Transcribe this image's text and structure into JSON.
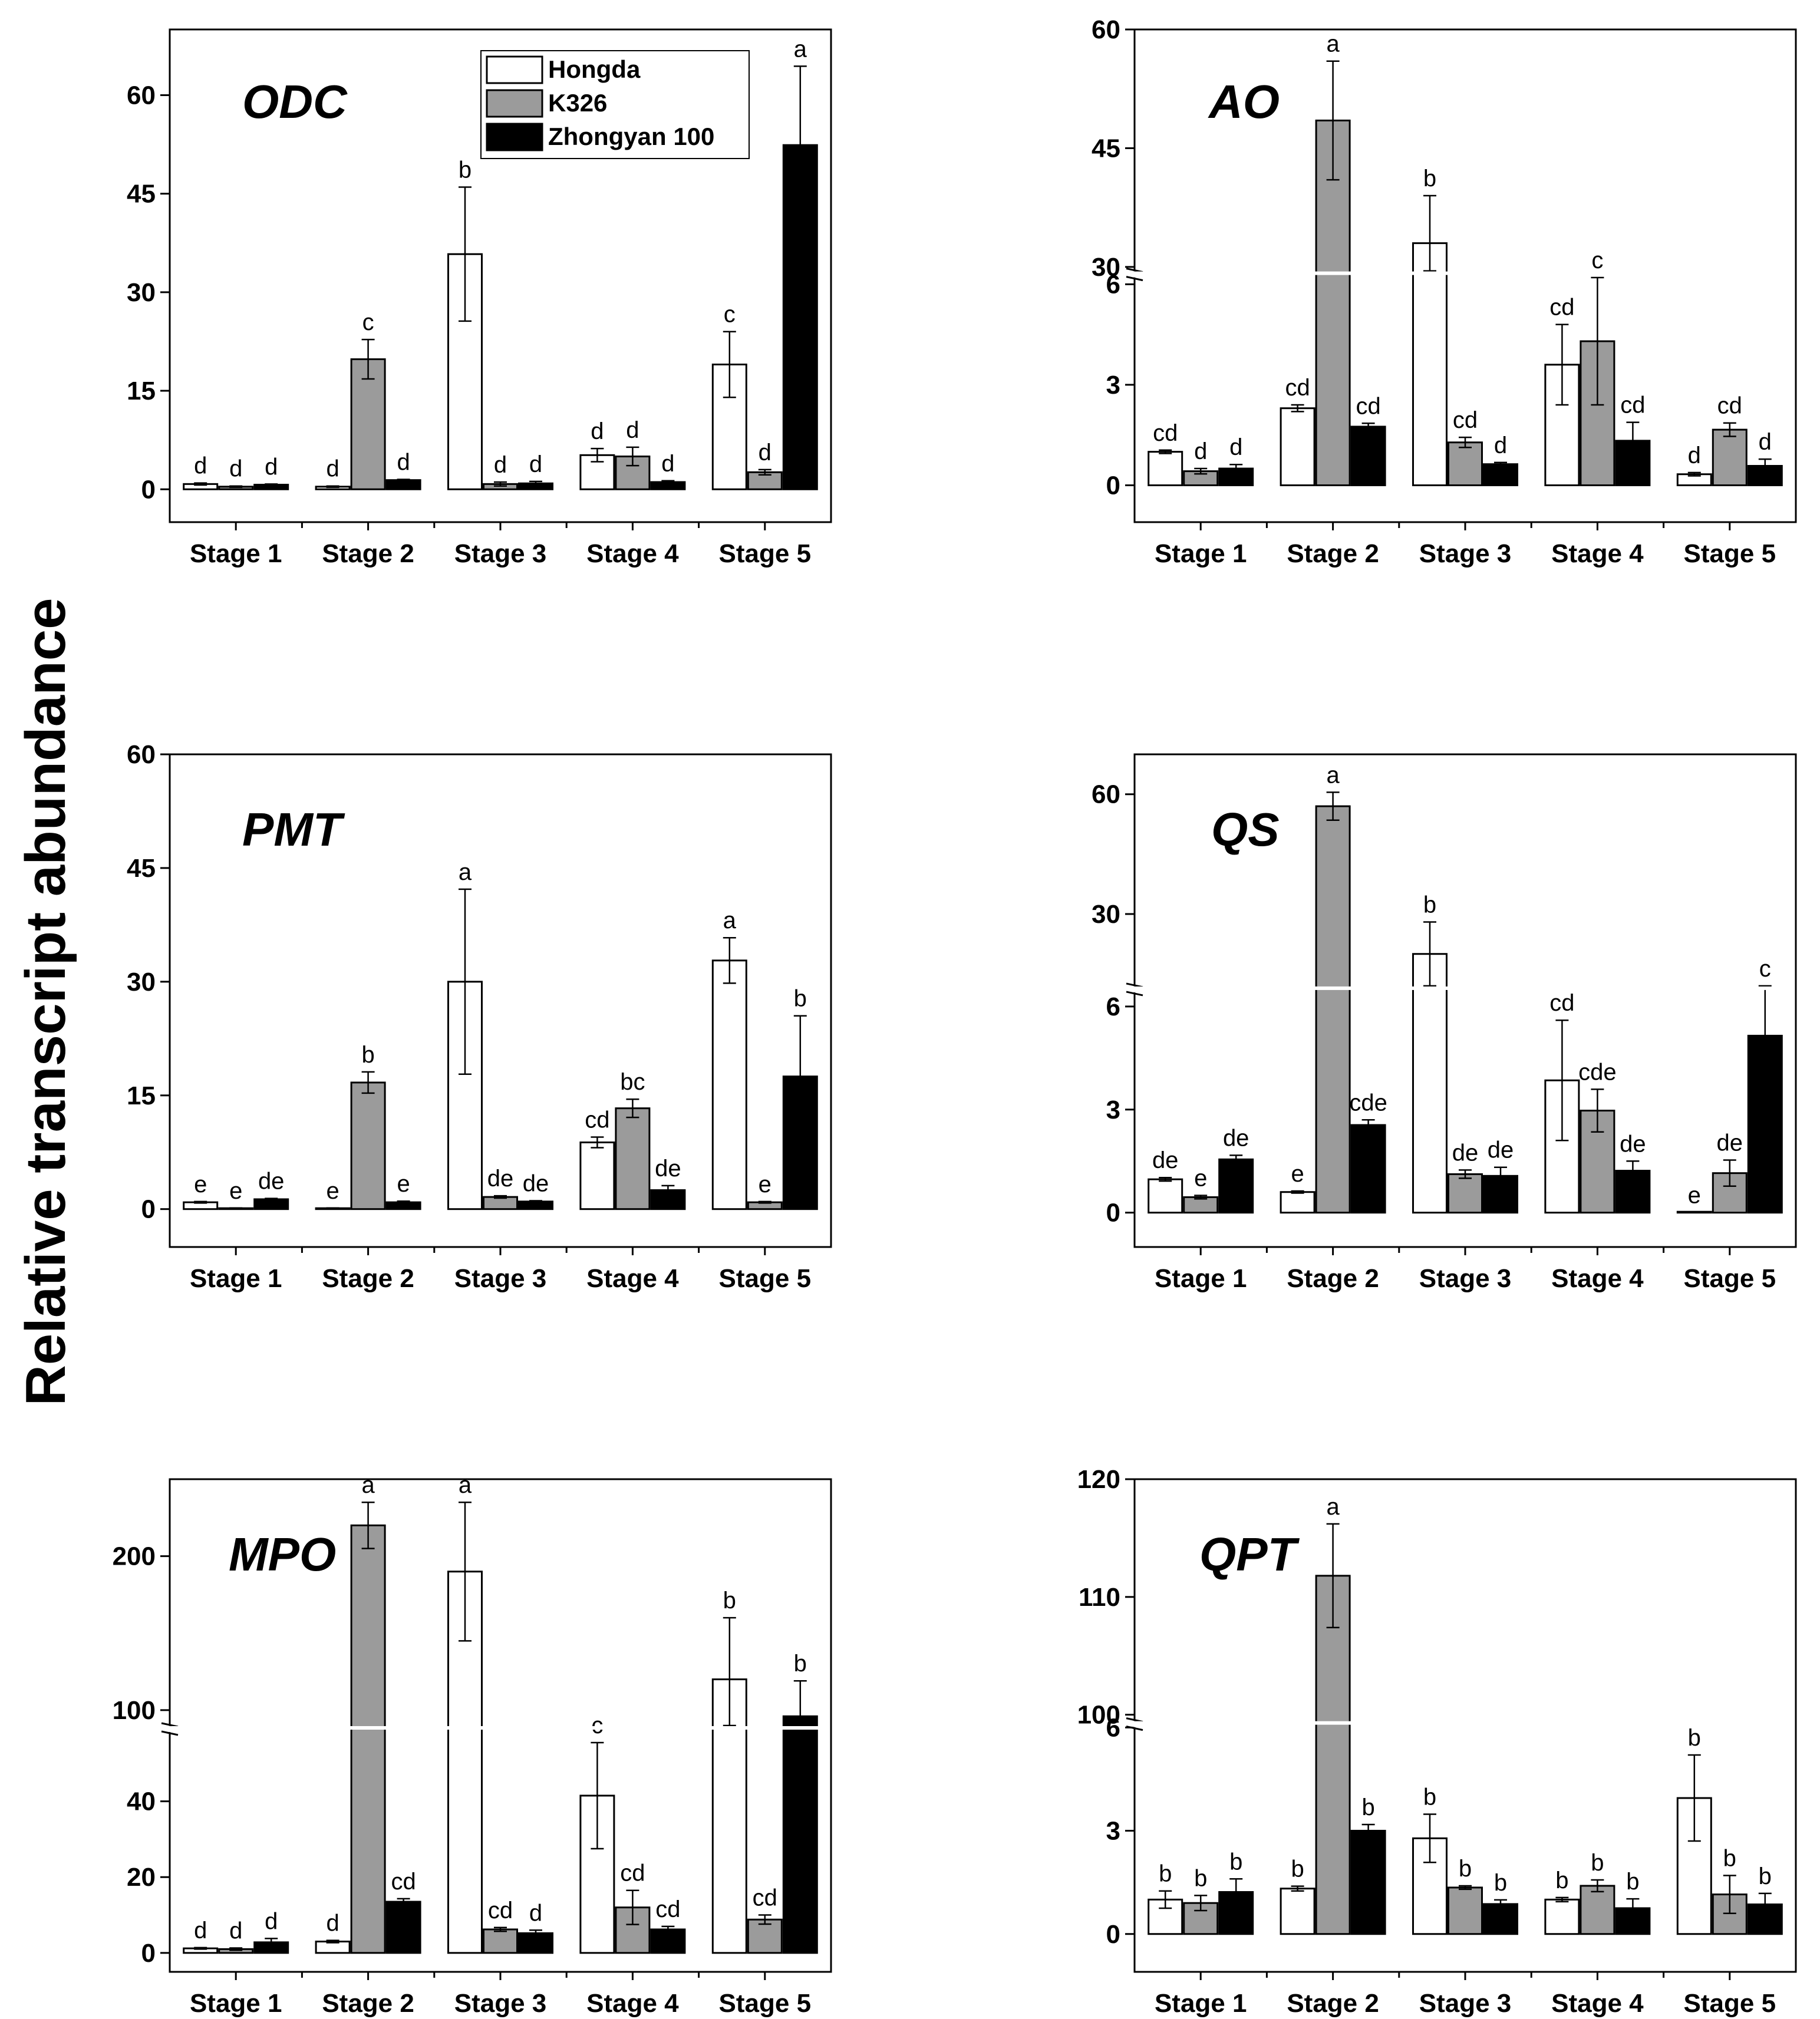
{
  "figure": {
    "y_axis_label": "Relative transcript abundance",
    "series": [
      {
        "name": "Hongda",
        "color": "#ffffff"
      },
      {
        "name": "K326",
        "color": "#9b9b9b"
      },
      {
        "name": "Zhongyan 100",
        "color": "#000000"
      }
    ]
  },
  "chart_data": [
    {
      "type": "bar",
      "title": "ODC",
      "legend_position": "top-right",
      "categories": [
        "Stage 1",
        "Stage 2",
        "Stage 3",
        "Stage 4",
        "Stage 5"
      ],
      "axis": {
        "broken": false,
        "ylim": [
          -5,
          70
        ],
        "ticks": [
          0,
          15,
          30,
          45,
          60
        ],
        "tick_labels": [
          "0",
          "15",
          "30",
          "45",
          "60"
        ]
      },
      "series": [
        {
          "name": "Hongda",
          "values": [
            0.8,
            0.4,
            35.8,
            5.2,
            19.0
          ],
          "errors": [
            0.15,
            0.1,
            10.2,
            1.0,
            5.0
          ],
          "letters": [
            "d",
            "d",
            "b",
            "d",
            "c"
          ]
        },
        {
          "name": "K326",
          "values": [
            0.4,
            19.8,
            0.8,
            5.0,
            2.6
          ],
          "errors": [
            0.1,
            3.0,
            0.3,
            1.4,
            0.4
          ],
          "letters": [
            "d",
            "c",
            "d",
            "d",
            "d"
          ]
        },
        {
          "name": "Zhongyan 100",
          "values": [
            0.7,
            1.4,
            0.9,
            1.1,
            52.4
          ],
          "errors": [
            0.1,
            0.1,
            0.3,
            0.2,
            12.0
          ],
          "letters": [
            "d",
            "d",
            "d",
            "d",
            "a"
          ]
        }
      ]
    },
    {
      "type": "bar",
      "title": "AO",
      "legend_position": "none",
      "categories": [
        "Stage 1",
        "Stage 2",
        "Stage 3",
        "Stage 4",
        "Stage 5"
      ],
      "axis": {
        "broken": true,
        "lower": [
          -1.1,
          6.4
        ],
        "upper": [
          29.5,
          60
        ],
        "lower_ticks": [
          0,
          3,
          6
        ],
        "lower_tick_labels": [
          "0",
          "3",
          "6"
        ],
        "upper_ticks": [
          30,
          45,
          60
        ],
        "upper_tick_labels": [
          "30",
          "45",
          "60"
        ]
      },
      "series": [
        {
          "name": "Hongda",
          "values": [
            1.0,
            2.3,
            33.0,
            3.6,
            0.33
          ],
          "errors": [
            0.05,
            0.1,
            6.0,
            1.2,
            0.05
          ],
          "letters": [
            "cd",
            "cd",
            "b",
            "cd",
            "d"
          ]
        },
        {
          "name": "K326",
          "values": [
            0.42,
            48.5,
            1.28,
            4.3,
            1.66
          ],
          "errors": [
            0.08,
            7.5,
            0.15,
            1.9,
            0.2
          ],
          "letters": [
            "d",
            "a",
            "cd",
            "c",
            "cd"
          ]
        },
        {
          "name": "Zhongyan 100",
          "values": [
            0.5,
            1.75,
            0.63,
            1.33,
            0.58
          ],
          "errors": [
            0.12,
            0.1,
            0.05,
            0.55,
            0.2
          ],
          "letters": [
            "d",
            "cd",
            "d",
            "cd",
            "d"
          ]
        }
      ]
    },
    {
      "type": "bar",
      "title": "PMT",
      "legend_position": "none",
      "categories": [
        "Stage 1",
        "Stage 2",
        "Stage 3",
        "Stage 4",
        "Stage 5"
      ],
      "axis": {
        "broken": false,
        "ylim": [
          -5,
          60
        ],
        "ticks": [
          0,
          15,
          30,
          45,
          60
        ],
        "tick_labels": [
          "0",
          "15",
          "30",
          "45",
          "60"
        ]
      },
      "series": [
        {
          "name": "Hongda",
          "values": [
            0.9,
            0.1,
            30.0,
            8.8,
            32.8
          ],
          "errors": [
            0.1,
            0.05,
            12.2,
            0.7,
            3.0
          ],
          "letters": [
            "e",
            "e",
            "a",
            "cd",
            "a"
          ]
        },
        {
          "name": "K326",
          "values": [
            0.1,
            16.7,
            1.6,
            13.3,
            0.9
          ],
          "errors": [
            0.05,
            1.4,
            0.15,
            1.2,
            0.1
          ],
          "letters": [
            "e",
            "b",
            "de",
            "bc",
            "e"
          ]
        },
        {
          "name": "Zhongyan 100",
          "values": [
            1.3,
            0.9,
            1.0,
            2.5,
            17.5
          ],
          "errors": [
            0.1,
            0.15,
            0.1,
            0.6,
            8.0
          ],
          "letters": [
            "de",
            "e",
            "de",
            "de",
            "b"
          ]
        }
      ]
    },
    {
      "type": "bar",
      "title": "QS",
      "legend_position": "none",
      "categories": [
        "Stage 1",
        "Stage 2",
        "Stage 3",
        "Stage 4",
        "Stage 5"
      ],
      "axis": {
        "broken": true,
        "lower": [
          -1.0,
          6.6
        ],
        "upper": [
          12,
          70
        ],
        "lower_ticks": [
          0,
          3,
          6
        ],
        "lower_tick_labels": [
          "0",
          "3",
          "6"
        ],
        "upper_ticks": [
          30,
          60
        ],
        "upper_tick_labels": [
          "30",
          "60"
        ]
      },
      "series": [
        {
          "name": "Hongda",
          "values": [
            0.97,
            0.6,
            20.0,
            3.85,
            0.0
          ],
          "errors": [
            0.05,
            0.03,
            8.0,
            1.75,
            0.0
          ],
          "letters": [
            "de",
            "e",
            "b",
            "cd",
            "e"
          ]
        },
        {
          "name": "K326",
          "values": [
            0.45,
            57.0,
            1.12,
            2.97,
            1.15
          ],
          "errors": [
            0.05,
            3.5,
            0.12,
            0.62,
            0.38
          ],
          "letters": [
            "e",
            "a",
            "de",
            "cde",
            "de"
          ]
        },
        {
          "name": "Zhongyan 100",
          "values": [
            1.55,
            2.55,
            1.07,
            1.22,
            5.15
          ],
          "errors": [
            0.12,
            0.15,
            0.25,
            0.28,
            1.5
          ],
          "letters": [
            "de",
            "cde",
            "de",
            "de",
            "c"
          ]
        }
      ]
    },
    {
      "type": "bar",
      "title": "MPO",
      "legend_position": "none",
      "categories": [
        "Stage 1",
        "Stage 2",
        "Stage 3",
        "Stage 4",
        "Stage 5"
      ],
      "axis": {
        "broken": true,
        "lower": [
          -5,
          60
        ],
        "upper": [
          90,
          250
        ],
        "lower_ticks": [
          0,
          20,
          40
        ],
        "lower_tick_labels": [
          "0",
          "20",
          "40"
        ],
        "upper_ticks": [
          100,
          200
        ],
        "upper_tick_labels": [
          "100",
          "200"
        ]
      },
      "series": [
        {
          "name": "Hongda",
          "values": [
            1.2,
            3.0,
            190.0,
            41.5,
            120.0
          ],
          "errors": [
            0.2,
            0.3,
            45.0,
            14.0,
            40.0
          ],
          "letters": [
            "d",
            "d",
            "a",
            "c",
            "b"
          ]
        },
        {
          "name": "K326",
          "values": [
            1.0,
            220.0,
            6.2,
            12.0,
            8.8
          ],
          "errors": [
            0.3,
            15.0,
            0.5,
            4.5,
            1.2
          ],
          "letters": [
            "d",
            "a",
            "cd",
            "cd",
            "cd"
          ]
        },
        {
          "name": "Zhongyan 100",
          "values": [
            2.8,
            13.5,
            5.2,
            6.2,
            96.0
          ],
          "errors": [
            1.0,
            0.8,
            0.8,
            0.8,
            23.0
          ],
          "letters": [
            "d",
            "cd",
            "d",
            "cd",
            "b"
          ]
        }
      ]
    },
    {
      "type": "bar",
      "title": "QPT",
      "legend_position": "none",
      "categories": [
        "Stage 1",
        "Stage 2",
        "Stage 3",
        "Stage 4",
        "Stage 5"
      ],
      "axis": {
        "broken": true,
        "lower": [
          -1.1,
          6.2
        ],
        "upper": [
          99.5,
          120
        ],
        "lower_ticks": [
          0,
          3,
          6
        ],
        "lower_tick_labels": [
          "0",
          "3",
          "6"
        ],
        "upper_ticks": [
          100,
          110,
          120
        ],
        "upper_tick_labels": [
          "100",
          "110",
          "120"
        ]
      },
      "series": [
        {
          "name": "Hongda",
          "values": [
            1.0,
            1.32,
            2.78,
            1.0,
            3.95
          ],
          "errors": [
            0.25,
            0.07,
            0.7,
            0.06,
            1.25
          ],
          "letters": [
            "b",
            "b",
            "b",
            "b",
            "b"
          ]
        },
        {
          "name": "K326",
          "values": [
            0.9,
            111.8,
            1.35,
            1.4,
            1.15
          ],
          "errors": [
            0.22,
            4.4,
            0.05,
            0.17,
            0.55
          ],
          "letters": [
            "b",
            "a",
            "b",
            "b",
            "b"
          ]
        },
        {
          "name": "Zhongyan 100",
          "values": [
            1.22,
            3.0,
            0.87,
            0.75,
            0.86
          ],
          "errors": [
            0.38,
            0.18,
            0.12,
            0.27,
            0.32
          ],
          "letters": [
            "b",
            "b",
            "b",
            "b",
            "b"
          ]
        }
      ]
    }
  ]
}
